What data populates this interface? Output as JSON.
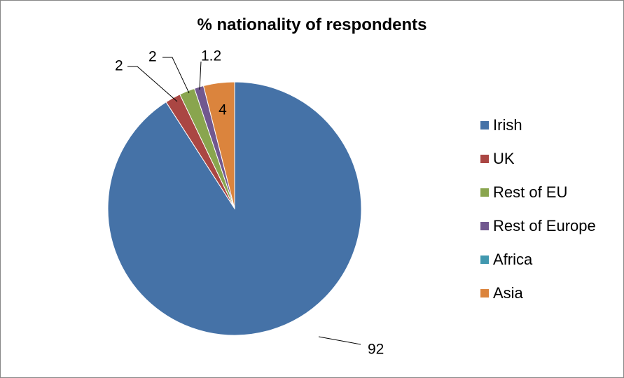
{
  "chart_data": {
    "type": "pie",
    "title": "% nationality of respondents",
    "categories": [
      "Irish",
      "UK",
      "Rest of EU",
      "Rest of Europe",
      "Africa",
      "Asia"
    ],
    "values": [
      92,
      2,
      2,
      1.2,
      0,
      4
    ],
    "data_labels": [
      "92",
      "2",
      "2",
      "1.2",
      "",
      "4"
    ],
    "colors": [
      "#4572A7",
      "#AA4643",
      "#89A54E",
      "#71588F",
      "#4198AF",
      "#DB843D"
    ],
    "legend": "right"
  }
}
